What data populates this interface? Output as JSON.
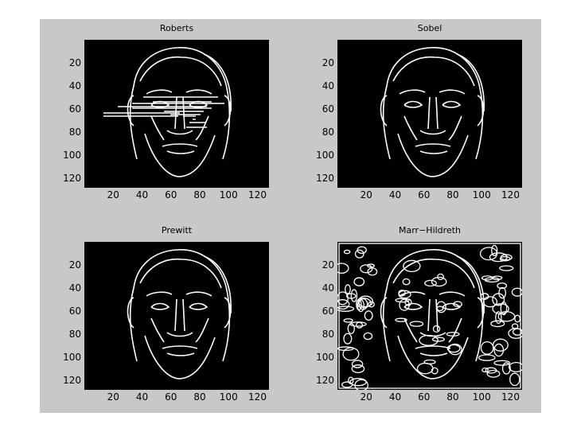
{
  "figure": {
    "background": "#c8c8c8",
    "panels": [
      {
        "id": "roberts",
        "title": "Roberts",
        "style": "horizontal-streaks"
      },
      {
        "id": "sobel",
        "title": "Sobel",
        "style": "clean"
      },
      {
        "id": "prewitt",
        "title": "Prewitt",
        "style": "clean"
      },
      {
        "id": "marr",
        "title": "Marr−Hildreth",
        "style": "noisy"
      }
    ],
    "y_ticks": [
      "20",
      "40",
      "60",
      "80",
      "100",
      "120"
    ],
    "x_ticks": [
      "20",
      "40",
      "60",
      "80",
      "100",
      "120"
    ],
    "axis_range": [
      0,
      128
    ],
    "image_colors": {
      "background": "#000000",
      "edges": "#ffffff"
    }
  }
}
